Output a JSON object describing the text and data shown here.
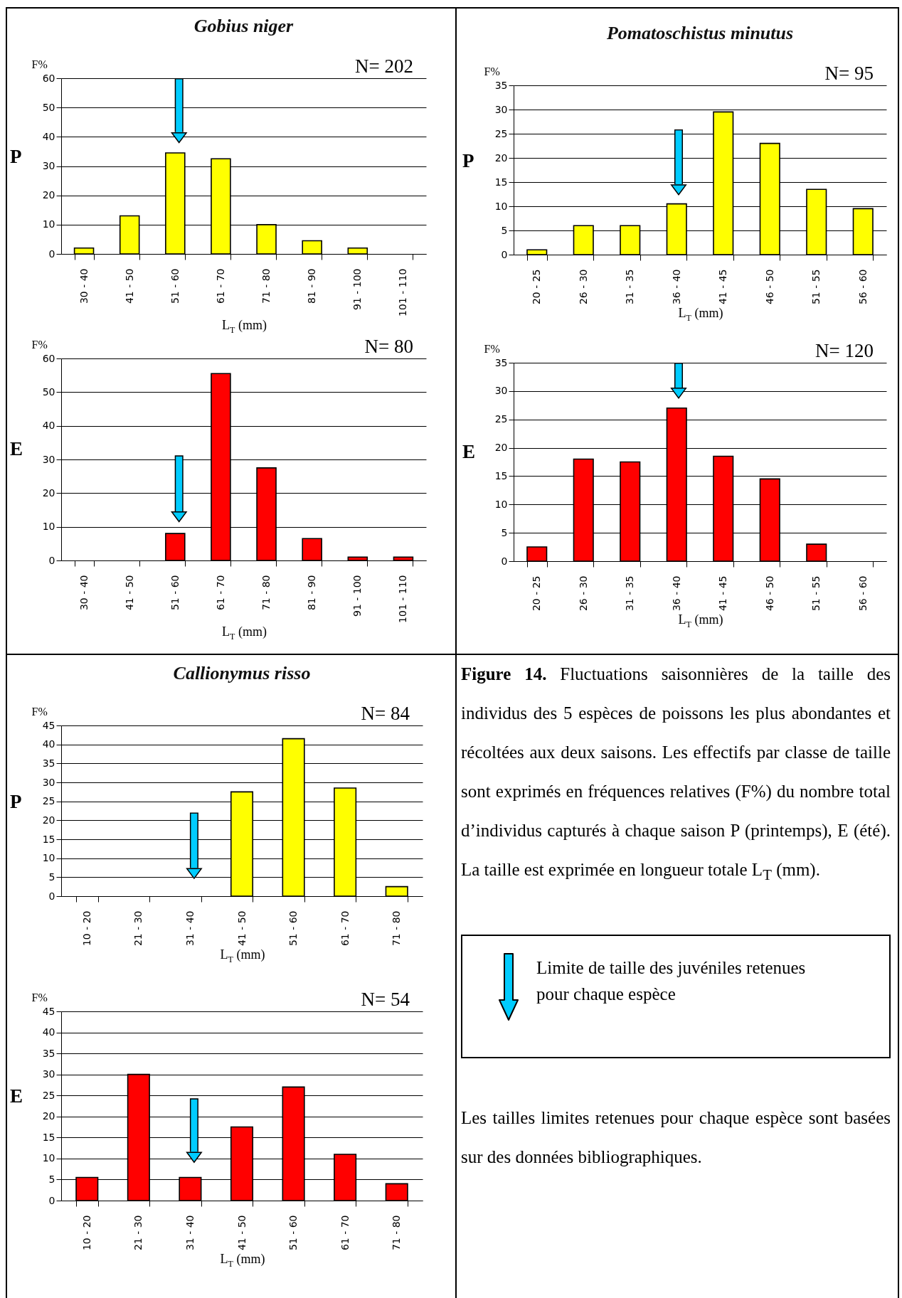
{
  "chart_data": [
    {
      "type": "bar",
      "title": "Gobius niger",
      "ylabel": "F%",
      "xlabel": "L$_{T}$ (mm)",
      "categories": [
        "30 - 40",
        "41 - 50",
        "51 - 60",
        "61 - 70",
        "71 - 80",
        "81 - 90",
        "91 - 100",
        "101 - 110"
      ],
      "series": [
        {
          "color": "#ffff00",
          "values": [
            2,
            13,
            34.5,
            32.5,
            10,
            4.5,
            2,
            null
          ]
        }
      ],
      "ylim": [
        0,
        60
      ],
      "yticks": [
        0,
        10,
        20,
        30,
        40,
        50,
        60
      ],
      "grid": "y",
      "annotations": [
        "N= 202",
        "P"
      ],
      "ref_lines": [
        {
          "axis": "x",
          "value": "51 - 60",
          "label": null,
          "color": "#00ccff"
        }
      ]
    },
    {
      "type": "bar",
      "title": "Pomatoschistus minutus",
      "ylabel": "F%",
      "xlabel": "L$_{T}$ (mm)",
      "categories": [
        "20 - 25",
        "26 - 30",
        "31 - 35",
        "36 - 40",
        "41 - 45",
        "46 - 50",
        "51 - 55",
        "56 - 60"
      ],
      "series": [
        {
          "color": "#ffff00",
          "values": [
            1,
            6,
            6,
            10.5,
            29.5,
            23,
            13.5,
            9.5
          ]
        }
      ],
      "ylim": [
        0,
        35
      ],
      "yticks": [
        0,
        5,
        10,
        15,
        20,
        25,
        30,
        35
      ],
      "grid": "y",
      "annotations": [
        "N= 95",
        "P"
      ],
      "ref_lines": [
        {
          "axis": "x",
          "value": "36 - 40",
          "label": null,
          "color": "#00ccff"
        }
      ]
    },
    {
      "type": "bar",
      "ylabel": "F%",
      "xlabel": "L$_{T}$ (mm)",
      "categories": [
        "30 - 40",
        "41 - 50",
        "51 - 60",
        "61 - 70",
        "71 - 80",
        "81 - 90",
        "91 - 100",
        "101 - 110"
      ],
      "series": [
        {
          "color": "#ff0000",
          "values": [
            null,
            null,
            8,
            55.5,
            27.5,
            6.5,
            1,
            1
          ]
        }
      ],
      "ylim": [
        0,
        60
      ],
      "yticks": [
        0,
        10,
        20,
        30,
        40,
        50,
        60
      ],
      "grid": "y",
      "annotations": [
        "N= 80",
        "E"
      ],
      "ref_lines": [
        {
          "axis": "x",
          "value": "51 - 60",
          "label": null,
          "color": "#00ccff"
        }
      ]
    },
    {
      "type": "bar",
      "ylabel": "F%",
      "xlabel": "L$_{T}$ (mm)",
      "categories": [
        "20 - 25",
        "26 - 30",
        "31 - 35",
        "36 - 40",
        "41 - 45",
        "46 - 50",
        "51 - 55",
        "56 - 60"
      ],
      "series": [
        {
          "color": "#ff0000",
          "values": [
            2.5,
            18,
            17.5,
            27,
            18.5,
            14.5,
            3,
            null
          ]
        }
      ],
      "ylim": [
        0,
        35
      ],
      "yticks": [
        0,
        5,
        10,
        15,
        20,
        25,
        30,
        35
      ],
      "grid": "y",
      "annotations": [
        "N= 120",
        "E"
      ],
      "ref_lines": [
        {
          "axis": "x",
          "value": "36 - 40",
          "label": null,
          "color": "#00ccff"
        }
      ]
    },
    {
      "type": "bar",
      "title": "Callionymus risso",
      "ylabel": "F%",
      "xlabel": "L$_{T}$ (mm)",
      "categories": [
        "10 - 20",
        "21 - 30",
        "31 - 40",
        "41 - 50",
        "51 - 60",
        "61 - 70",
        "71 - 80"
      ],
      "series": [
        {
          "color": "#ffff00",
          "values": [
            null,
            null,
            null,
            27.5,
            41.5,
            28.5,
            2.5
          ]
        }
      ],
      "ylim": [
        0,
        45
      ],
      "yticks": [
        0,
        5,
        10,
        15,
        20,
        25,
        30,
        35,
        40,
        45
      ],
      "grid": "y",
      "annotations": [
        "N= 84",
        "P"
      ],
      "ref_lines": [
        {
          "axis": "x",
          "value": "31 - 40",
          "label": null,
          "color": "#00ccff"
        }
      ]
    },
    {
      "type": "bar",
      "ylabel": "F%",
      "xlabel": "L$_{T}$ (mm)",
      "categories": [
        "10 - 20",
        "21 - 30",
        "31 - 40",
        "41 - 50",
        "51 - 60",
        "61 - 70",
        "71 - 80"
      ],
      "series": [
        {
          "color": "#ff0000",
          "values": [
            5.5,
            30,
            5.5,
            17.5,
            27,
            11,
            4
          ]
        }
      ],
      "ylim": [
        0,
        45
      ],
      "yticks": [
        0,
        5,
        10,
        15,
        20,
        25,
        30,
        35,
        40,
        45
      ],
      "grid": "y",
      "annotations": [
        "N= 54",
        "E"
      ],
      "ref_lines": [
        {
          "axis": "x",
          "value": "31 - 40",
          "label": null,
          "color": "#00ccff"
        }
      ]
    },
    {
      "type": "other",
      "annotations": [
        "Figure 14.",
        "Fluctuations saisonnières de la taille des individus des 5 espèces de poissons les plus abondantes et récoltées aux deux saisons. Les effectifs par classe de taille sont exprimés en fréquences relatives (F%) du nombre total d’individus capturés à chaque saison P (printemps), E (été). La taille est exprimée en longueur totale L$_{T}$ (mm).",
        "Limite de taille des juvéniles retenues pour chaque espèce",
        "Les tailles limites retenues pour chaque espèce sont basées sur des données bibliographiques."
      ]
    }
  ]
}
